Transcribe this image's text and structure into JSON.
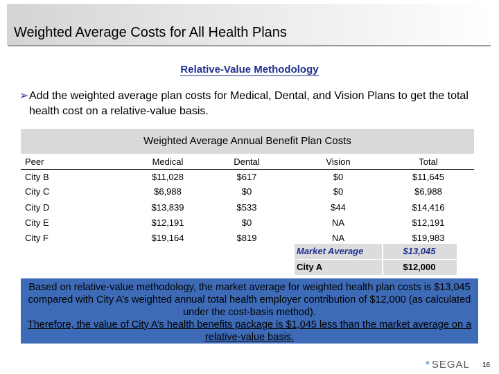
{
  "header": {
    "title": "Weighted Average Costs for All Health Plans"
  },
  "subtitle": "Relative-Value Methodology",
  "bullet": {
    "icon": "arrow-bullet-icon",
    "text": "Add the weighted average plan costs for Medical, Dental, and Vision Plans to get the total health cost on a relative-value basis."
  },
  "table": {
    "caption": "Weighted Average Annual Benefit Plan Costs",
    "columns": [
      "Peer",
      "Medical",
      "Dental",
      "Vision",
      "Total"
    ],
    "rows": [
      [
        "City B",
        "$11,028",
        "$617",
        "$0",
        "$11,645"
      ],
      [
        "City C",
        "$6,988",
        "$0",
        "$0",
        "$6,988"
      ],
      [
        "City D",
        "$13,839",
        "$533",
        "$44",
        "$14,416"
      ],
      [
        "City E",
        "$12,191",
        "$0",
        "NA",
        "$12,191"
      ],
      [
        "City F",
        "$19,164",
        "$819",
        "NA",
        "$19,983"
      ]
    ],
    "market_average": {
      "label": "Market Average",
      "value": "$13,045"
    },
    "city_a": {
      "label": "City A",
      "value": "$12,000"
    }
  },
  "note": {
    "text": "Based on relative-value methodology, the market average for weighted health plan costs is $13,045 compared with City A’s weighted annual total health employer contribution of $12,000 (as calculated under the cost-basis method).",
    "conclusion": "Therefore, the value of City A’s health benefits package is $1,045 less than the market average on a relative-value basis."
  },
  "footer": {
    "logo": "SEGAL",
    "logo_icon": "asterisk-icon",
    "page_number": "16"
  },
  "colors": {
    "accent_blue": "#1f2f8f",
    "note_background": "#3e6bb7",
    "table_header_gray": "#d9d9d9"
  }
}
